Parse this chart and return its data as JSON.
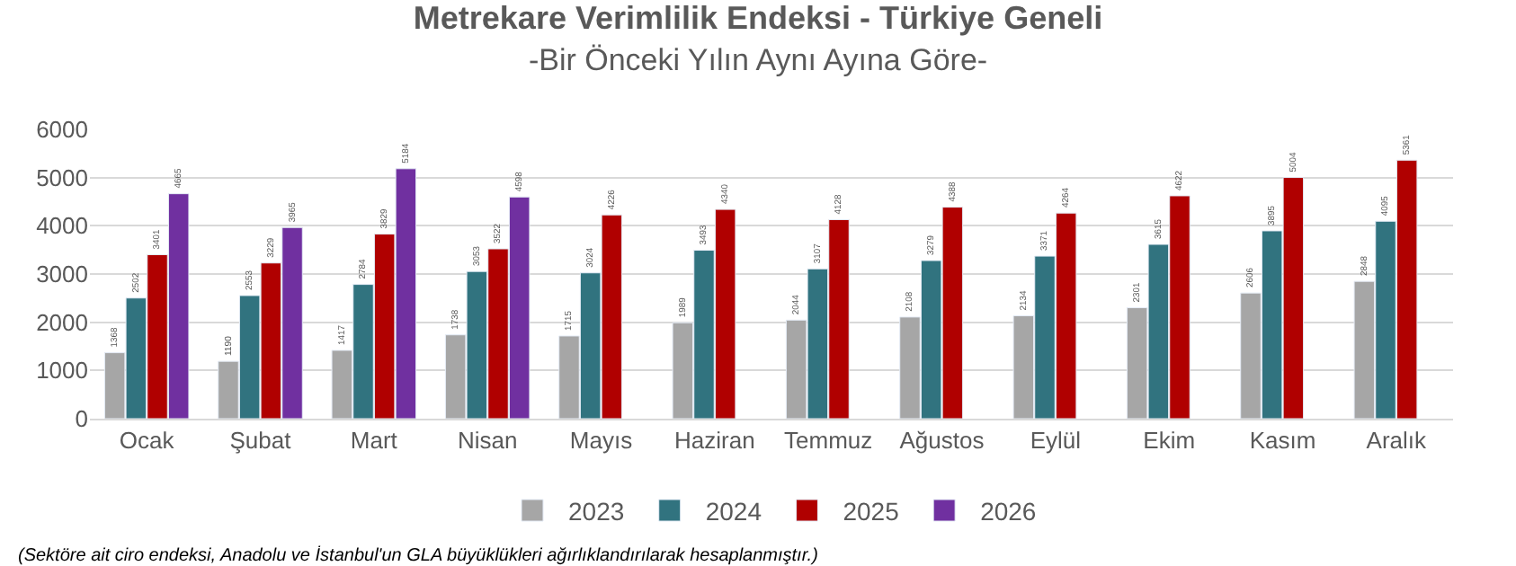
{
  "chart_data": {
    "type": "bar",
    "title": "Metrekare Verimlilik Endeksi - Türkiye Geneli",
    "subtitle": "-Bir Önceki Yılın Aynı Ayına Göre-",
    "categories": [
      "Ocak",
      "Şubat",
      "Mart",
      "Nisan",
      "Mayıs",
      "Haziran",
      "Temmuz",
      "Ağustos",
      "Eylül",
      "Ekim",
      "Kasım",
      "Aralık"
    ],
    "series": [
      {
        "name": "2023",
        "color": "#a6a6a6",
        "values": [
          1368,
          1190,
          1417,
          1738,
          1715,
          1989,
          2044,
          2108,
          2134,
          2301,
          2606,
          2848
        ]
      },
      {
        "name": "2024",
        "color": "#31737f",
        "values": [
          2502,
          2553,
          2784,
          3053,
          3024,
          3493,
          3107,
          3279,
          3371,
          3615,
          3895,
          4095
        ]
      },
      {
        "name": "2025",
        "color": "#b00000",
        "values": [
          3401,
          3229,
          3829,
          3522,
          4226,
          4340,
          4128,
          4388,
          4264,
          4622,
          5004,
          5361
        ]
      },
      {
        "name": "2026",
        "color": "#7030a0",
        "values": [
          4665,
          3965,
          5184,
          4598,
          null,
          null,
          null,
          null,
          null,
          null,
          null,
          null
        ]
      }
    ],
    "ylim": [
      0,
      6000
    ],
    "yticks": [
      0,
      1000,
      2000,
      3000,
      4000,
      5000,
      6000
    ],
    "grid": "y",
    "legend": "bottom",
    "data_labels": true,
    "annotations": [
      "(Sektöre ait ciro endeksi, Anadolu ve İstanbul'un GLA büyüklükleri ağırlıklandırılarak hesaplanmıştır.)"
    ]
  }
}
